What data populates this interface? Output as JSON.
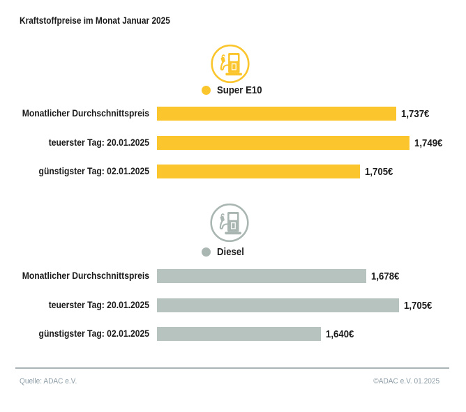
{
  "title": "Kraftstoffpreise im Monat Januar 2025",
  "colors": {
    "super_yellow": "#FBC52D",
    "diesel_bar_gray": "#B6C3BF",
    "diesel_icon_gray": "#A9B6B2",
    "text": "#1B1B1B",
    "footer_text": "#8C9CA6",
    "divider": "#A8B4B8"
  },
  "footer": {
    "source": "Quelle: ADAC e.V.",
    "copyright": "©ADAC e.V. 01.2025"
  },
  "chart_data": [
    {
      "type": "bar",
      "orientation": "horizontal",
      "group": "Super E10",
      "icon": "fuel-pump-icon",
      "legend_color": "#FBC52D",
      "categories": [
        "Monatlicher Durchschnittspreis",
        "teuerster Tag: 20.01.2025",
        "günstigster Tag: 02.01.2025"
      ],
      "values": [
        1.737,
        1.749,
        1.705
      ],
      "value_labels": [
        "1,737€",
        "1,749€",
        "1,705€"
      ],
      "xlim": [
        1.524,
        1.749
      ],
      "grid": false,
      "legend_position": "top-center"
    },
    {
      "type": "bar",
      "orientation": "horizontal",
      "group": "Diesel",
      "icon": "fuel-pump-icon",
      "legend_color": "#B6C3BF",
      "categories": [
        "Monatlicher Durchschnittspreis",
        "teuerster Tag: 20.01.2025",
        "günstigster Tag: 02.01.2025"
      ],
      "values": [
        1.678,
        1.705,
        1.64
      ],
      "value_labels": [
        "1,678€",
        "1,705€",
        "1,640€"
      ],
      "xlim": [
        1.504,
        1.705
      ],
      "grid": false,
      "legend_position": "top-center"
    }
  ]
}
